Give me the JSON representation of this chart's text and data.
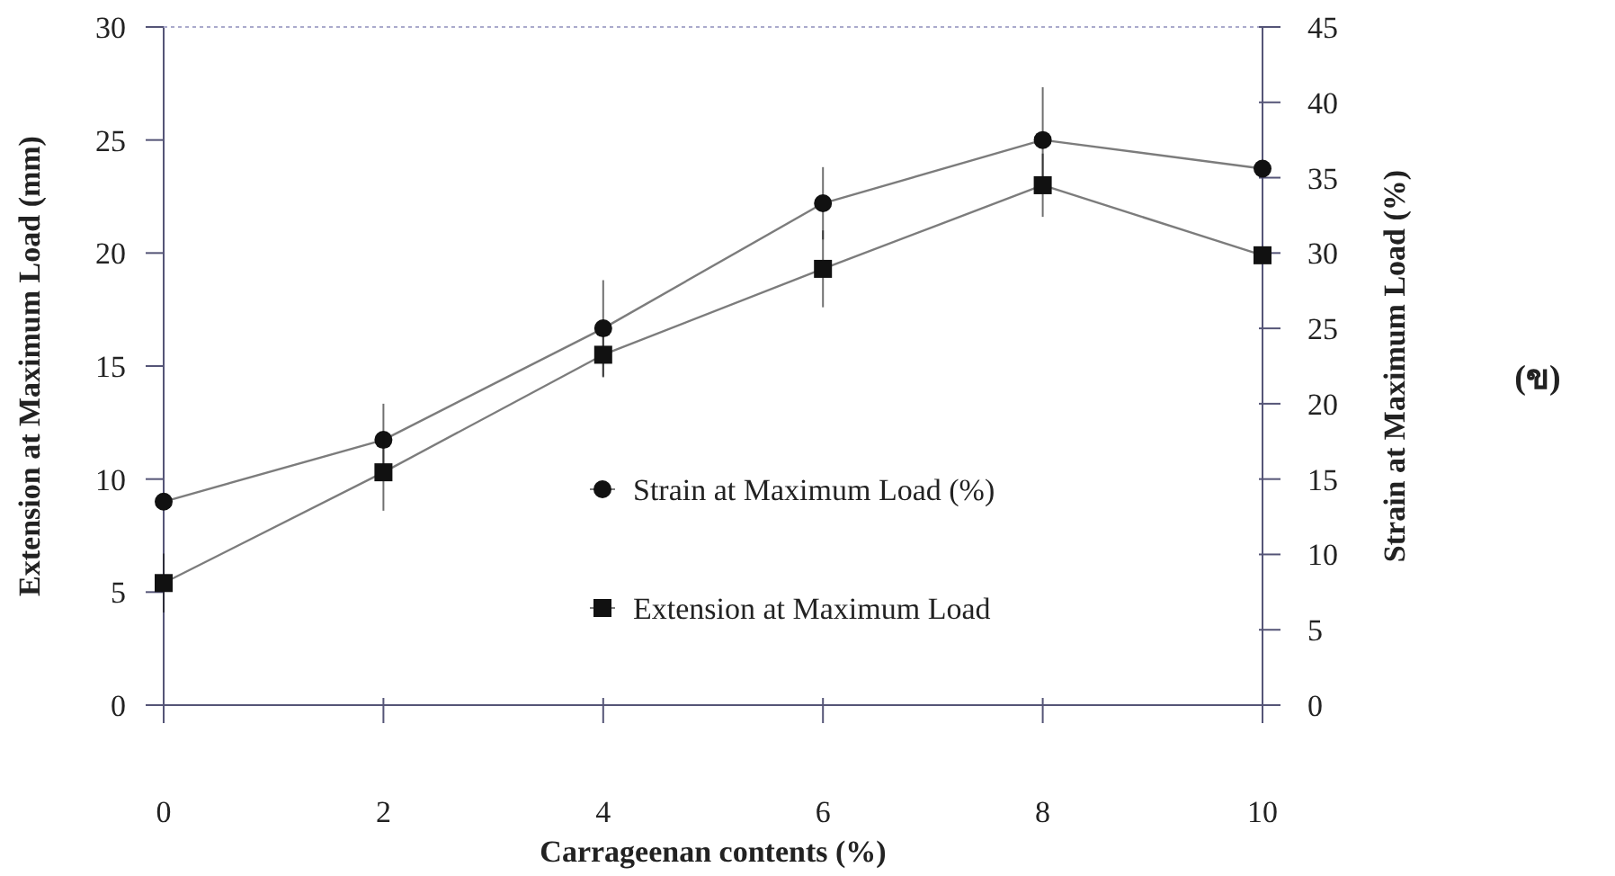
{
  "chart_data": {
    "type": "line",
    "xlabel": "Carrageenan contents (%)",
    "ylabel": "Extension at Maximum Load (mm)",
    "y2label": "Strain at Maximum Load (%)",
    "annotations": [
      "(ข)"
    ],
    "x": [
      0,
      2,
      4,
      6,
      8,
      10
    ],
    "series": [
      {
        "name": "Strain at Maximum Load (%)",
        "color": "#111111",
        "axis": "y2",
        "marker": "circle",
        "values": [
          13.5,
          17.6,
          25.0,
          33.3,
          37.5,
          35.6
        ],
        "errors": [
          null,
          2.4,
          3.2,
          2.4,
          3.5,
          null
        ]
      },
      {
        "name": "Extension at Maximum Load",
        "color": "#111111",
        "axis": "y",
        "marker": "square",
        "values": [
          5.4,
          10.3,
          15.5,
          19.3,
          23.0,
          19.9
        ],
        "errors": [
          1.3,
          1.7,
          1.0,
          1.7,
          1.4,
          null
        ]
      }
    ],
    "xlim": [
      0,
      10
    ],
    "xticks": [
      0,
      2,
      4,
      6,
      8,
      10
    ],
    "ylim": [
      0,
      30
    ],
    "yticks": [
      0,
      5,
      10,
      15,
      20,
      25,
      30
    ],
    "y2lim": [
      0,
      45
    ],
    "y2ticks": [
      0,
      5,
      10,
      15,
      20,
      25,
      30,
      35,
      40,
      45
    ],
    "legend": "center",
    "grid": false
  }
}
